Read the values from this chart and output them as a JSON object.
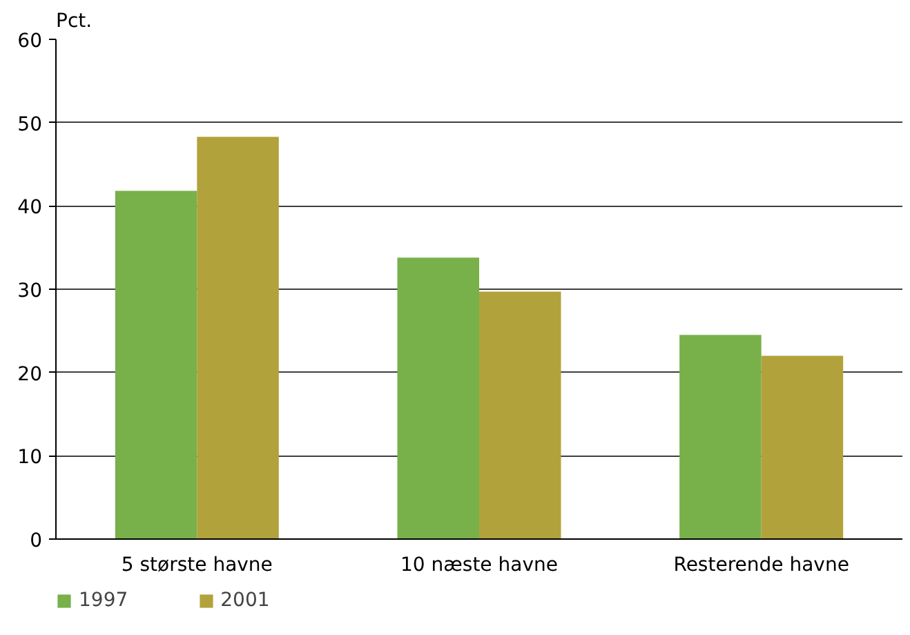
{
  "chart_data": {
    "type": "bar",
    "ylabel": "Pct.",
    "categories": [
      "5 største havne",
      "10 næste havne",
      "Resterende havne"
    ],
    "series": [
      {
        "name": "1997",
        "color": "#78b04a",
        "values": [
          41.8,
          33.8,
          24.5
        ]
      },
      {
        "name": "2001",
        "color": "#b2a23c",
        "values": [
          48.3,
          29.7,
          22.0
        ]
      }
    ],
    "ylim": [
      0,
      60
    ],
    "yticks": [
      0,
      10,
      20,
      30,
      40,
      50,
      60
    ],
    "grid": "y",
    "legend": "bottom left"
  }
}
